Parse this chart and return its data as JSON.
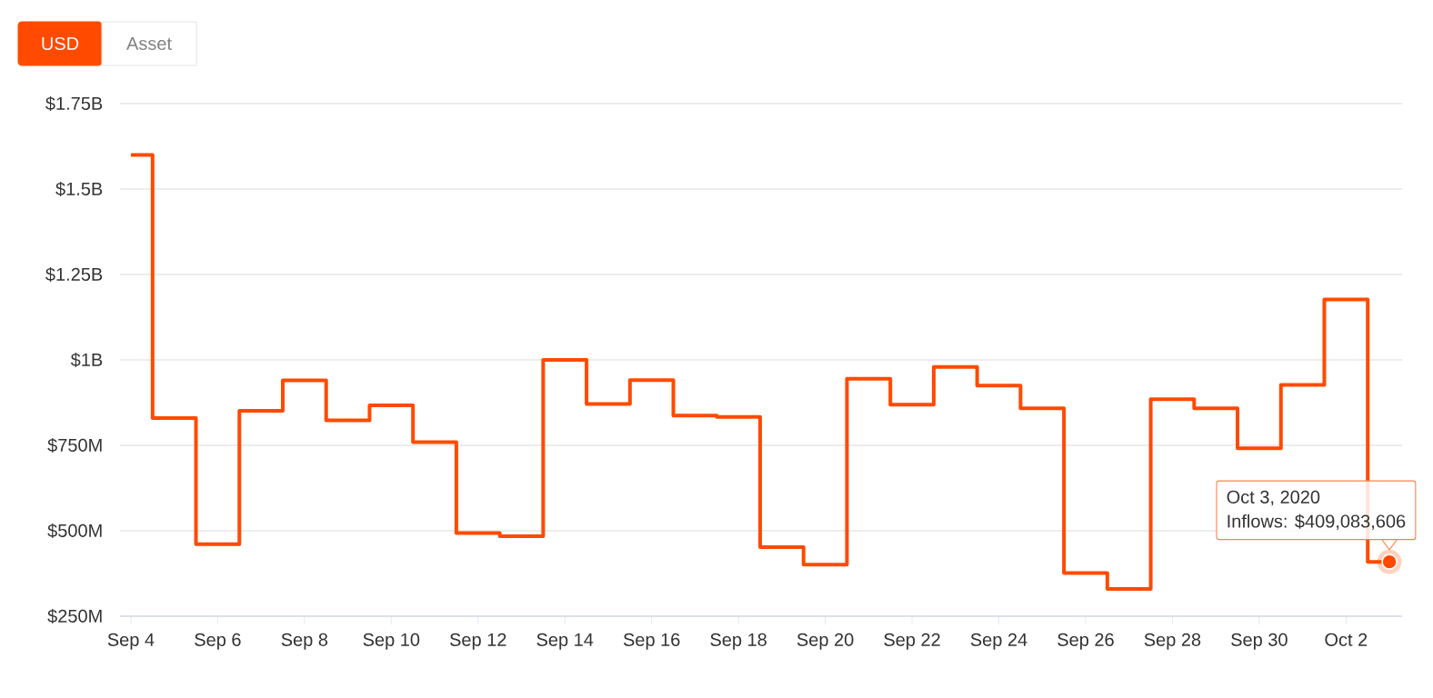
{
  "chart_data": {
    "type": "step",
    "color": "#ff4a00",
    "line_style": "solid",
    "grid": "y",
    "x": [
      "2020-09-04",
      "2020-09-05",
      "2020-09-06",
      "2020-09-07",
      "2020-09-08",
      "2020-09-09",
      "2020-09-10",
      "2020-09-11",
      "2020-09-12",
      "2020-09-13",
      "2020-09-14",
      "2020-09-15",
      "2020-09-16",
      "2020-09-17",
      "2020-09-18",
      "2020-09-19",
      "2020-09-20",
      "2020-09-21",
      "2020-09-22",
      "2020-09-23",
      "2020-09-24",
      "2020-09-25",
      "2020-09-26",
      "2020-09-27",
      "2020-09-28",
      "2020-09-29",
      "2020-09-30",
      "2020-10-01",
      "2020-10-02",
      "2020-10-03"
    ],
    "values": [
      1600000000,
      830000000,
      461000000,
      851000000,
      940000000,
      823000000,
      867000000,
      759000000,
      493000000,
      484000000,
      1000000000,
      871000000,
      941000000,
      837000000,
      833000000,
      452000000,
      401000000,
      945000000,
      869000000,
      979000000,
      925000000,
      858000000,
      376000000,
      330000000,
      885000000,
      858000000,
      741000000,
      927000000,
      1177000000,
      409083606
    ],
    "xlim": [
      "2020-09-03T18:00",
      "2020-10-03T07:00"
    ],
    "xticks": [
      {
        "value": "2020-09-04",
        "label": "Sep 4"
      },
      {
        "value": "2020-09-06",
        "label": "Sep 6"
      },
      {
        "value": "2020-09-08",
        "label": "Sep 8"
      },
      {
        "value": "2020-09-10",
        "label": "Sep 10"
      },
      {
        "value": "2020-09-12",
        "label": "Sep 12"
      },
      {
        "value": "2020-09-14",
        "label": "Sep 14"
      },
      {
        "value": "2020-09-16",
        "label": "Sep 16"
      },
      {
        "value": "2020-09-18",
        "label": "Sep 18"
      },
      {
        "value": "2020-09-20",
        "label": "Sep 20"
      },
      {
        "value": "2020-09-22",
        "label": "Sep 22"
      },
      {
        "value": "2020-09-24",
        "label": "Sep 24"
      },
      {
        "value": "2020-09-26",
        "label": "Sep 26"
      },
      {
        "value": "2020-09-28",
        "label": "Sep 28"
      },
      {
        "value": "2020-09-30",
        "label": "Sep 30"
      },
      {
        "value": "2020-10-02",
        "label": "Oct 2"
      }
    ],
    "ylim": [
      250000000,
      1750000000
    ],
    "yticks": [
      {
        "value": 250000000,
        "label": "$250M"
      },
      {
        "value": 500000000,
        "label": "$500M"
      },
      {
        "value": 750000000,
        "label": "$750M"
      },
      {
        "value": 1000000000,
        "label": "$1B"
      },
      {
        "value": 1250000000,
        "label": "$1.25B"
      },
      {
        "value": 1500000000,
        "label": "$1.5B"
      },
      {
        "value": 1750000000,
        "label": "$1.75B"
      }
    ],
    "annotations": [
      "USD",
      "Asset",
      "Oct 3, 2020",
      {
        "text": "Inflows: $409,083,606",
        "x": "2020-10-03",
        "y": 409083606
      }
    ]
  }
}
